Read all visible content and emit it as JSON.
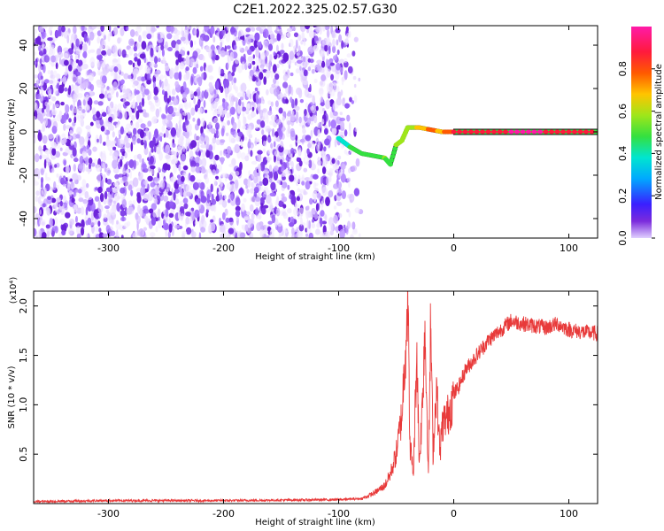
{
  "figure_title": "C2E1.2022.325.02.57.G30",
  "chart_data": [
    {
      "type": "heatmap",
      "xlabel": "Height of straight line (km)",
      "ylabel": "Frequency (Hz)",
      "xlim": [
        -365,
        125
      ],
      "ylim": [
        -49,
        49
      ],
      "xticks": [
        -300,
        -200,
        -100,
        0,
        100
      ],
      "yticks": [
        -40,
        -20,
        0,
        20,
        40
      ],
      "colorbar": {
        "label": "Normalized spectral amplitude",
        "range": [
          0.0,
          1.0
        ],
        "ticks": [
          "0.0",
          "0.2",
          "0.4",
          "0.6",
          "0.8"
        ],
        "colormap": [
          "#7b2bdc",
          "#3a1fff",
          "#00a8ff",
          "#00e5d0",
          "#34e040",
          "#9fe61a",
          "#ffc400",
          "#ff5a00",
          "#ff1a3c",
          "#ff1aa8"
        ]
      },
      "noise_region": {
        "x": [
          -365,
          -80
        ],
        "y": [
          -49,
          49
        ],
        "amplitude": "0.0-0.15"
      },
      "signal_track": [
        {
          "x": -100,
          "y": -3,
          "amplitude": 0.3
        },
        {
          "x": -90,
          "y": -7,
          "amplitude": 0.4
        },
        {
          "x": -80,
          "y": -10,
          "amplitude": 0.45
        },
        {
          "x": -70,
          "y": -11,
          "amplitude": 0.45
        },
        {
          "x": -60,
          "y": -12,
          "amplitude": 0.5
        },
        {
          "x": -55,
          "y": -15,
          "amplitude": 0.45
        },
        {
          "x": -50,
          "y": -6,
          "amplitude": 0.5
        },
        {
          "x": -45,
          "y": -4,
          "amplitude": 0.55
        },
        {
          "x": -40,
          "y": 2,
          "amplitude": 0.5
        },
        {
          "x": -30,
          "y": 2,
          "amplitude": 0.65
        },
        {
          "x": -20,
          "y": 1,
          "amplitude": 0.75
        },
        {
          "x": -10,
          "y": 0,
          "amplitude": 0.7
        },
        {
          "x": 0,
          "y": 0,
          "amplitude": 0.85
        },
        {
          "x": 25,
          "y": 0,
          "amplitude": 0.9
        },
        {
          "x": 50,
          "y": 0,
          "amplitude": 0.95
        },
        {
          "x": 75,
          "y": 0,
          "amplitude": 0.95
        },
        {
          "x": 100,
          "y": 0,
          "amplitude": 0.92
        },
        {
          "x": 125,
          "y": 0,
          "amplitude": 0.9
        }
      ]
    },
    {
      "type": "line",
      "xlabel": "Height of straight line (km)",
      "ylabel": "SNR (10 * v/v)",
      "y_multiplier_label": "(x10⁴)",
      "xlim": [
        -365,
        125
      ],
      "ylim": [
        0,
        2.15
      ],
      "xticks": [
        -300,
        -200,
        -100,
        0,
        100
      ],
      "yticks": [
        "0.5",
        "1.0",
        "1.5",
        "2.0"
      ],
      "color": "#e83a3a",
      "series": [
        {
          "x": [
            -365,
            -300,
            -200,
            -100,
            -80,
            -70,
            -60,
            -55,
            -50,
            -45,
            -42,
            -40,
            -38,
            -35,
            -32,
            -30,
            -28,
            -25,
            -22,
            -20,
            -18,
            -15,
            -12,
            -10,
            -5,
            0,
            5,
            10,
            20,
            30,
            40,
            50,
            60,
            70,
            80,
            90,
            100,
            110,
            125
          ],
          "y": [
            0.02,
            0.03,
            0.03,
            0.04,
            0.05,
            0.1,
            0.18,
            0.3,
            0.5,
            0.9,
            1.6,
            2.15,
            0.6,
            0.3,
            1.6,
            0.4,
            0.8,
            1.8,
            0.3,
            1.85,
            0.5,
            1.2,
            0.5,
            0.8,
            0.9,
            1.1,
            1.2,
            1.35,
            1.5,
            1.65,
            1.75,
            1.85,
            1.82,
            1.8,
            1.78,
            1.82,
            1.76,
            1.74,
            1.72
          ]
        }
      ]
    }
  ]
}
